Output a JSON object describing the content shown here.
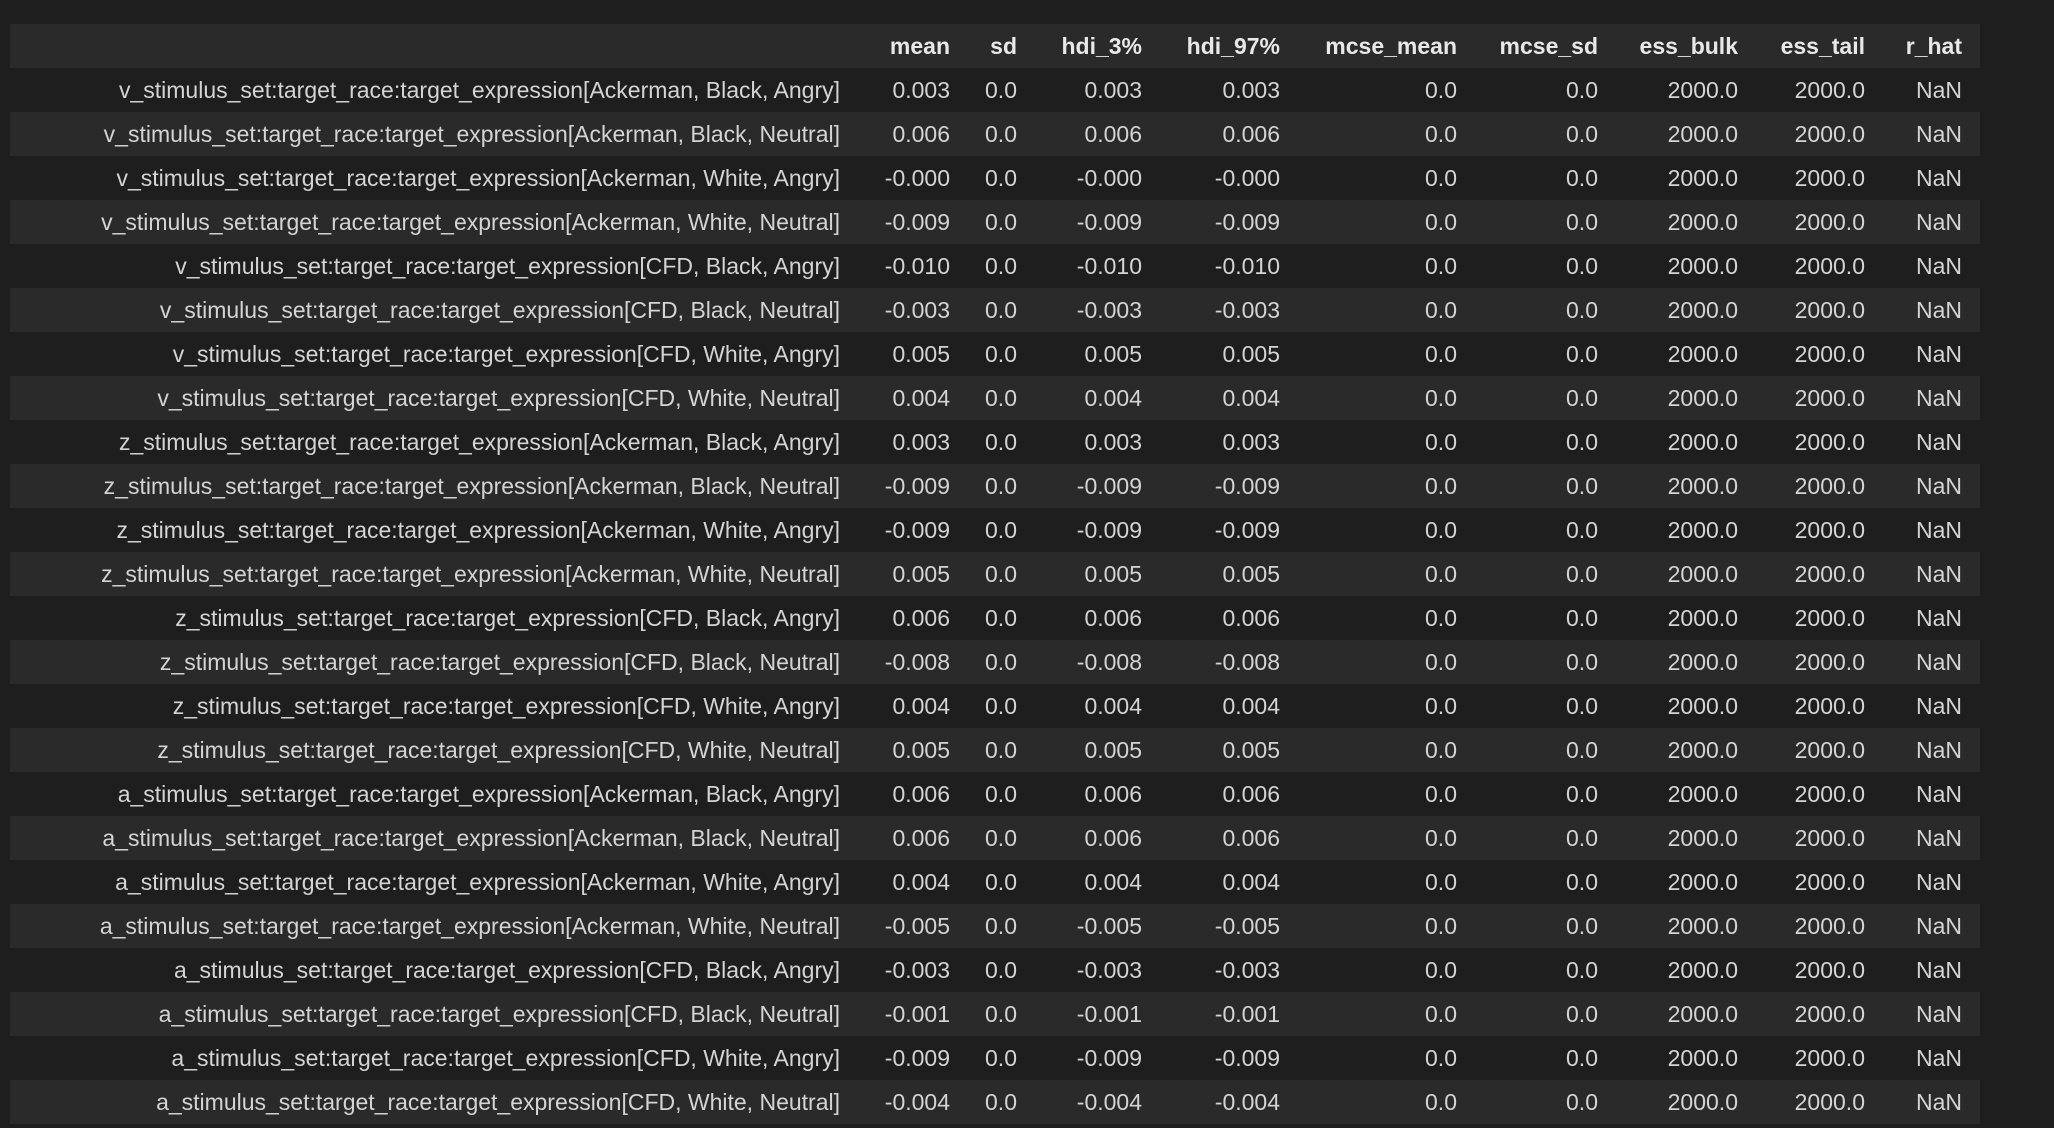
{
  "table": {
    "index_header": "",
    "columns": [
      "mean",
      "sd",
      "hdi_3%",
      "hdi_97%",
      "mcse_mean",
      "mcse_sd",
      "ess_bulk",
      "ess_tail",
      "r_hat"
    ],
    "rows": [
      {
        "label": "v_stimulus_set:target_race:target_expression[Ackerman, Black, Angry]",
        "values": [
          "0.003",
          "0.0",
          "0.003",
          "0.003",
          "0.0",
          "0.0",
          "2000.0",
          "2000.0",
          "NaN"
        ]
      },
      {
        "label": "v_stimulus_set:target_race:target_expression[Ackerman, Black, Neutral]",
        "values": [
          "0.006",
          "0.0",
          "0.006",
          "0.006",
          "0.0",
          "0.0",
          "2000.0",
          "2000.0",
          "NaN"
        ]
      },
      {
        "label": "v_stimulus_set:target_race:target_expression[Ackerman, White, Angry]",
        "values": [
          "-0.000",
          "0.0",
          "-0.000",
          "-0.000",
          "0.0",
          "0.0",
          "2000.0",
          "2000.0",
          "NaN"
        ]
      },
      {
        "label": "v_stimulus_set:target_race:target_expression[Ackerman, White, Neutral]",
        "values": [
          "-0.009",
          "0.0",
          "-0.009",
          "-0.009",
          "0.0",
          "0.0",
          "2000.0",
          "2000.0",
          "NaN"
        ]
      },
      {
        "label": "v_stimulus_set:target_race:target_expression[CFD, Black, Angry]",
        "values": [
          "-0.010",
          "0.0",
          "-0.010",
          "-0.010",
          "0.0",
          "0.0",
          "2000.0",
          "2000.0",
          "NaN"
        ]
      },
      {
        "label": "v_stimulus_set:target_race:target_expression[CFD, Black, Neutral]",
        "values": [
          "-0.003",
          "0.0",
          "-0.003",
          "-0.003",
          "0.0",
          "0.0",
          "2000.0",
          "2000.0",
          "NaN"
        ]
      },
      {
        "label": "v_stimulus_set:target_race:target_expression[CFD, White, Angry]",
        "values": [
          "0.005",
          "0.0",
          "0.005",
          "0.005",
          "0.0",
          "0.0",
          "2000.0",
          "2000.0",
          "NaN"
        ]
      },
      {
        "label": "v_stimulus_set:target_race:target_expression[CFD, White, Neutral]",
        "values": [
          "0.004",
          "0.0",
          "0.004",
          "0.004",
          "0.0",
          "0.0",
          "2000.0",
          "2000.0",
          "NaN"
        ]
      },
      {
        "label": "z_stimulus_set:target_race:target_expression[Ackerman, Black, Angry]",
        "values": [
          "0.003",
          "0.0",
          "0.003",
          "0.003",
          "0.0",
          "0.0",
          "2000.0",
          "2000.0",
          "NaN"
        ]
      },
      {
        "label": "z_stimulus_set:target_race:target_expression[Ackerman, Black, Neutral]",
        "values": [
          "-0.009",
          "0.0",
          "-0.009",
          "-0.009",
          "0.0",
          "0.0",
          "2000.0",
          "2000.0",
          "NaN"
        ]
      },
      {
        "label": "z_stimulus_set:target_race:target_expression[Ackerman, White, Angry]",
        "values": [
          "-0.009",
          "0.0",
          "-0.009",
          "-0.009",
          "0.0",
          "0.0",
          "2000.0",
          "2000.0",
          "NaN"
        ]
      },
      {
        "label": "z_stimulus_set:target_race:target_expression[Ackerman, White, Neutral]",
        "values": [
          "0.005",
          "0.0",
          "0.005",
          "0.005",
          "0.0",
          "0.0",
          "2000.0",
          "2000.0",
          "NaN"
        ]
      },
      {
        "label": "z_stimulus_set:target_race:target_expression[CFD, Black, Angry]",
        "values": [
          "0.006",
          "0.0",
          "0.006",
          "0.006",
          "0.0",
          "0.0",
          "2000.0",
          "2000.0",
          "NaN"
        ]
      },
      {
        "label": "z_stimulus_set:target_race:target_expression[CFD, Black, Neutral]",
        "values": [
          "-0.008",
          "0.0",
          "-0.008",
          "-0.008",
          "0.0",
          "0.0",
          "2000.0",
          "2000.0",
          "NaN"
        ]
      },
      {
        "label": "z_stimulus_set:target_race:target_expression[CFD, White, Angry]",
        "values": [
          "0.004",
          "0.0",
          "0.004",
          "0.004",
          "0.0",
          "0.0",
          "2000.0",
          "2000.0",
          "NaN"
        ]
      },
      {
        "label": "z_stimulus_set:target_race:target_expression[CFD, White, Neutral]",
        "values": [
          "0.005",
          "0.0",
          "0.005",
          "0.005",
          "0.0",
          "0.0",
          "2000.0",
          "2000.0",
          "NaN"
        ]
      },
      {
        "label": "a_stimulus_set:target_race:target_expression[Ackerman, Black, Angry]",
        "values": [
          "0.006",
          "0.0",
          "0.006",
          "0.006",
          "0.0",
          "0.0",
          "2000.0",
          "2000.0",
          "NaN"
        ]
      },
      {
        "label": "a_stimulus_set:target_race:target_expression[Ackerman, Black, Neutral]",
        "values": [
          "0.006",
          "0.0",
          "0.006",
          "0.006",
          "0.0",
          "0.0",
          "2000.0",
          "2000.0",
          "NaN"
        ]
      },
      {
        "label": "a_stimulus_set:target_race:target_expression[Ackerman, White, Angry]",
        "values": [
          "0.004",
          "0.0",
          "0.004",
          "0.004",
          "0.0",
          "0.0",
          "2000.0",
          "2000.0",
          "NaN"
        ]
      },
      {
        "label": "a_stimulus_set:target_race:target_expression[Ackerman, White, Neutral]",
        "values": [
          "-0.005",
          "0.0",
          "-0.005",
          "-0.005",
          "0.0",
          "0.0",
          "2000.0",
          "2000.0",
          "NaN"
        ]
      },
      {
        "label": "a_stimulus_set:target_race:target_expression[CFD, Black, Angry]",
        "values": [
          "-0.003",
          "0.0",
          "-0.003",
          "-0.003",
          "0.0",
          "0.0",
          "2000.0",
          "2000.0",
          "NaN"
        ]
      },
      {
        "label": "a_stimulus_set:target_race:target_expression[CFD, Black, Neutral]",
        "values": [
          "-0.001",
          "0.0",
          "-0.001",
          "-0.001",
          "0.0",
          "0.0",
          "2000.0",
          "2000.0",
          "NaN"
        ]
      },
      {
        "label": "a_stimulus_set:target_race:target_expression[CFD, White, Angry]",
        "values": [
          "-0.009",
          "0.0",
          "-0.009",
          "-0.009",
          "0.0",
          "0.0",
          "2000.0",
          "2000.0",
          "NaN"
        ]
      },
      {
        "label": "a_stimulus_set:target_race:target_expression[CFD, White, Neutral]",
        "values": [
          "-0.004",
          "0.0",
          "-0.004",
          "-0.004",
          "0.0",
          "0.0",
          "2000.0",
          "2000.0",
          "NaN"
        ]
      }
    ]
  },
  "colors": {
    "background": "#1e1e1e",
    "stripe": "#2a2a2a",
    "text": "#d4d4d4"
  }
}
